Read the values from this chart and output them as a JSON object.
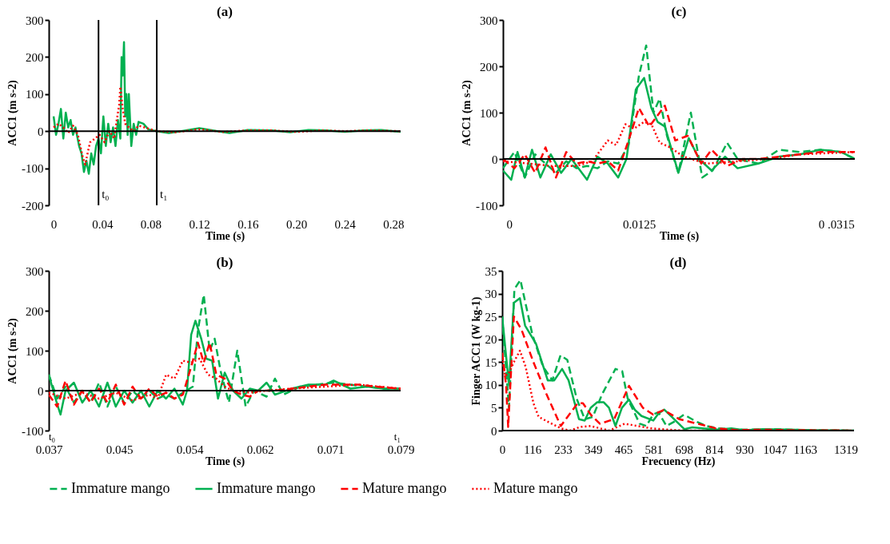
{
  "chart_data": [
    {
      "type": "line",
      "title": "(a)",
      "xlabel": "Time (s)",
      "ylabel": "ACC1 (m s-2)",
      "xlim": [
        -0.004,
        0.286
      ],
      "xticks": [
        0,
        0.04,
        0.08,
        0.12,
        0.16,
        {
          "value": 0.2,
          "label": "0.20"
        },
        0.24,
        0.28
      ],
      "ylim": [
        -200,
        300
      ],
      "yticks": [
        -200,
        -100,
        0,
        100,
        200,
        300
      ],
      "ref_lines": [
        {
          "axis": "x",
          "value": 0.037,
          "label": "t₀",
          "color": "#000000"
        },
        {
          "axis": "x",
          "value": 0.085,
          "label": "t₁",
          "color": "#000000"
        }
      ],
      "series": [
        {
          "color": "#00b050",
          "line_style": "solid",
          "x": [
            0,
            0.002,
            0.004,
            0.006,
            0.008,
            0.01,
            0.012,
            0.014,
            0.016,
            0.018,
            0.021,
            0.023,
            0.025,
            0.027,
            0.029,
            0.031,
            0.033,
            0.035,
            0.037,
            0.039,
            0.041,
            0.043,
            0.045,
            0.047,
            0.049,
            0.051,
            0.053,
            0.055,
            0.056,
            0.057,
            0.058,
            0.059,
            0.06,
            0.061,
            0.062,
            0.064,
            0.066,
            0.068,
            0.07,
            0.074,
            0.078,
            0.085,
            0.095,
            0.105,
            0.12,
            0.135,
            0.145,
            0.16,
            0.18,
            0.195,
            0.21,
            0.225,
            0.24,
            0.255,
            0.27,
            0.286
          ],
          "values": [
            40,
            -10,
            20,
            60,
            -20,
            50,
            10,
            30,
            -10,
            10,
            -40,
            -60,
            -110,
            -80,
            -115,
            -60,
            -90,
            -40,
            -20,
            -60,
            40,
            -40,
            20,
            -30,
            10,
            -40,
            30,
            -20,
            200,
            150,
            240,
            40,
            100,
            -10,
            100,
            -40,
            20,
            -10,
            25,
            20,
            5,
            0,
            -5,
            0,
            8,
            0,
            -5,
            3,
            2,
            -3,
            3,
            2,
            -2,
            2,
            3,
            -2
          ]
        },
        {
          "color": "#ff0000",
          "line_style": "dotted",
          "x": [
            0,
            0.004,
            0.008,
            0.012,
            0.016,
            0.02,
            0.022,
            0.024,
            0.026,
            0.028,
            0.03,
            0.034,
            0.038,
            0.042,
            0.046,
            0.05,
            0.052,
            0.054,
            0.055,
            0.057,
            0.059,
            0.062,
            0.066,
            0.07,
            0.075,
            0.085,
            0.1,
            0.12,
            0.14,
            0.16,
            0.18,
            0.2,
            0.22,
            0.24,
            0.26,
            0.286
          ],
          "values": [
            10,
            20,
            10,
            -5,
            15,
            -10,
            -40,
            -70,
            -90,
            -60,
            -30,
            -20,
            -10,
            -30,
            0,
            -20,
            30,
            70,
            120,
            60,
            20,
            10,
            0,
            15,
            10,
            0,
            -3,
            5,
            -2,
            2,
            2,
            -2,
            2,
            0,
            2,
            0
          ]
        }
      ]
    },
    {
      "type": "line",
      "title": "(c)",
      "xlabel": "Time (s)",
      "ylabel": "ACC1 (m s-2)",
      "xlim": [
        -0.0006,
        0.0333
      ],
      "xticks": [
        0,
        0.0125,
        {
          "value": 0.0315,
          "label": "0 .0315"
        }
      ],
      "ylim": [
        -100,
        300
      ],
      "yticks": [
        -100,
        0,
        100,
        200,
        300
      ],
      "series": [
        {
          "color": "#00b050",
          "line_style": "dashed",
          "x": [
            -0.0006,
            0.0005,
            0.0015,
            0.0025,
            0.0035,
            0.0045,
            0.0055,
            0.0065,
            0.0075,
            0.0085,
            0.0095,
            0.0105,
            0.0115,
            0.0125,
            0.0132,
            0.0139,
            0.0145,
            0.0152,
            0.0163,
            0.0175,
            0.0186,
            0.0196,
            0.021,
            0.022,
            0.024,
            0.026,
            0.028,
            0.03,
            0.032,
            0.0333
          ],
          "values": [
            -20,
            15,
            -40,
            10,
            -10,
            -30,
            -5,
            -20,
            -15,
            -20,
            -5,
            -10,
            30,
            180,
            245,
            100,
            130,
            50,
            -30,
            100,
            -40,
            -25,
            35,
            0,
            -10,
            20,
            15,
            20,
            15,
            0
          ]
        },
        {
          "color": "#00b050",
          "line_style": "solid",
          "x": [
            -0.0006,
            0.0002,
            0.0008,
            0.0015,
            0.0022,
            0.003,
            0.004,
            0.005,
            0.006,
            0.0075,
            0.0085,
            0.0095,
            0.0105,
            0.0113,
            0.0122,
            0.013,
            0.0137,
            0.0143,
            0.015,
            0.0163,
            0.0173,
            0.0183,
            0.0195,
            0.0208,
            0.022,
            0.024,
            0.026,
            0.028,
            0.03,
            0.032,
            0.0333
          ],
          "values": [
            -25,
            -45,
            15,
            -40,
            20,
            -40,
            10,
            -30,
            0,
            -45,
            5,
            -10,
            -40,
            0,
            150,
            175,
            110,
            80,
            70,
            -30,
            45,
            0,
            -25,
            5,
            -20,
            -10,
            5,
            10,
            20,
            15,
            0
          ]
        },
        {
          "color": "#ff0000",
          "line_style": "dashed",
          "x": [
            -0.0006,
            0.0005,
            0.0015,
            0.0025,
            0.0035,
            0.0045,
            0.0055,
            0.0065,
            0.0075,
            0.0085,
            0.0095,
            0.0105,
            0.0115,
            0.0125,
            0.0135,
            0.015,
            0.016,
            0.0172,
            0.0185,
            0.0195,
            0.021,
            0.0225,
            0.024,
            0.026,
            0.028,
            0.03,
            0.0333
          ],
          "values": [
            0,
            -20,
            10,
            -30,
            25,
            -40,
            15,
            -10,
            -5,
            -10,
            -5,
            -25,
            40,
            110,
            70,
            115,
            40,
            50,
            -10,
            20,
            -15,
            0,
            0,
            5,
            10,
            15,
            15
          ]
        },
        {
          "color": "#ff0000",
          "line_style": "dotted",
          "x": [
            -0.0006,
            0.002,
            0.004,
            0.0065,
            0.008,
            0.0095,
            0.0103,
            0.0112,
            0.012,
            0.013,
            0.0137,
            0.0145,
            0.0155,
            0.0168,
            0.019,
            0.022,
            0.025,
            0.028,
            0.0333
          ],
          "values": [
            -5,
            -10,
            -15,
            -15,
            -5,
            40,
            30,
            75,
            65,
            80,
            75,
            35,
            25,
            5,
            -10,
            -5,
            0,
            10,
            15
          ]
        }
      ]
    },
    {
      "type": "line",
      "title": "(b)",
      "xlabel": "Time (s)",
      "ylabel": "ACC1 (m s-2)",
      "xlim": [
        0.037,
        0.079
      ],
      "xticks": [
        0.037,
        {
          "value": 0.0454,
          "label": "0.045"
        },
        {
          "value": 0.0538,
          "label": "0.054"
        },
        {
          "value": 0.0622,
          "label": "0.062"
        },
        {
          "value": 0.0706,
          "label": "0.071"
        },
        0.079
      ],
      "ylim": [
        -100,
        300
      ],
      "yticks": [
        -100,
        0,
        100,
        200,
        300
      ],
      "annotations": [
        "t₀",
        "t₁"
      ],
      "series": [
        {
          "color": "#00b050",
          "line_style": "dashed",
          "x": [
            0.037,
            0.038,
            0.039,
            0.04,
            0.041,
            0.042,
            0.043,
            0.044,
            0.045,
            0.046,
            0.047,
            0.048,
            0.049,
            0.05,
            0.051,
            0.052,
            0.053,
            0.0542,
            0.0548,
            0.0555,
            0.0562,
            0.0568,
            0.0575,
            0.0585,
            0.0595,
            0.0605,
            0.0615,
            0.063,
            0.064,
            0.065,
            0.067,
            0.069,
            0.071,
            0.073,
            0.075,
            0.077,
            0.079
          ],
          "values": [
            40,
            -20,
            10,
            -30,
            0,
            -30,
            20,
            -40,
            10,
            -30,
            0,
            -20,
            0,
            -20,
            -10,
            -20,
            -5,
            10,
            150,
            240,
            100,
            130,
            50,
            -30,
            100,
            -40,
            0,
            -15,
            30,
            -10,
            10,
            15,
            20,
            15,
            10,
            5,
            5
          ]
        },
        {
          "color": "#00b050",
          "line_style": "solid",
          "x": [
            0.037,
            0.0378,
            0.0384,
            0.039,
            0.04,
            0.041,
            0.042,
            0.043,
            0.044,
            0.045,
            0.046,
            0.047,
            0.048,
            0.049,
            0.05,
            0.051,
            0.052,
            0.053,
            0.0535,
            0.054,
            0.0545,
            0.0552,
            0.0558,
            0.0565,
            0.0572,
            0.058,
            0.059,
            0.06,
            0.061,
            0.062,
            0.063,
            0.064,
            0.066,
            0.068,
            0.07,
            0.071,
            0.073,
            0.075,
            0.077,
            0.079
          ],
          "values": [
            40,
            -20,
            -60,
            0,
            20,
            -30,
            0,
            -40,
            20,
            -40,
            0,
            -30,
            0,
            -40,
            0,
            -20,
            5,
            -35,
            0,
            140,
            175,
            130,
            80,
            75,
            -20,
            45,
            0,
            -20,
            5,
            0,
            20,
            -10,
            5,
            15,
            15,
            25,
            5,
            10,
            5,
            5
          ]
        },
        {
          "color": "#ff0000",
          "line_style": "dashed",
          "x": [
            0.037,
            0.038,
            0.039,
            0.04,
            0.041,
            0.042,
            0.043,
            0.044,
            0.045,
            0.046,
            0.047,
            0.048,
            0.049,
            0.05,
            0.051,
            0.052,
            0.053,
            0.054,
            0.0548,
            0.0555,
            0.0562,
            0.057,
            0.058,
            0.059,
            0.06,
            0.061,
            0.062,
            0.064,
            0.066,
            0.068,
            0.07,
            0.072,
            0.074,
            0.076,
            0.079
          ],
          "values": [
            -10,
            -40,
            25,
            -35,
            0,
            -30,
            5,
            -30,
            15,
            -35,
            10,
            -20,
            5,
            -15,
            -5,
            -20,
            -10,
            60,
            120,
            70,
            120,
            40,
            30,
            0,
            -10,
            -15,
            0,
            0,
            5,
            10,
            15,
            15,
            15,
            10,
            5
          ]
        },
        {
          "color": "#ff0000",
          "line_style": "dotted",
          "x": [
            0.037,
            0.039,
            0.041,
            0.043,
            0.045,
            0.047,
            0.049,
            0.05,
            0.051,
            0.052,
            0.053,
            0.054,
            0.055,
            0.056,
            0.057,
            0.058,
            0.059,
            0.061,
            0.063,
            0.066,
            0.07,
            0.074,
            0.079
          ],
          "values": [
            -5,
            -20,
            -5,
            -20,
            -5,
            -25,
            -10,
            -20,
            40,
            30,
            75,
            70,
            80,
            40,
            30,
            10,
            0,
            -5,
            0,
            5,
            10,
            15,
            5
          ]
        }
      ]
    },
    {
      "type": "line",
      "title": "(d)",
      "xlabel": "Frecuency (Hz)",
      "ylabel": "Finger ACC1 (W kg-1)",
      "xlim": [
        0,
        1351
      ],
      "xticks": [
        0,
        116,
        233,
        349,
        465,
        581,
        698,
        814,
        930,
        1047,
        1163,
        1319
      ],
      "ylim": [
        0,
        35
      ],
      "yticks": [
        0,
        5,
        10,
        15,
        20,
        25,
        30,
        35
      ],
      "legend": "bottom",
      "series": [
        {
          "name": "Immature mango",
          "color": "#00b050",
          "line_style": "dashed",
          "x": [
            0,
            26,
            47,
            70,
            116,
            157,
            193,
            224,
            250,
            286,
            317,
            348,
            384,
            435,
            461,
            482,
            507,
            528,
            554,
            579,
            600,
            631,
            662,
            698,
            744,
            785,
            826,
            929,
            1047,
            1163,
            1351
          ],
          "values": [
            25,
            5,
            31,
            33,
            21,
            14,
            11,
            16.5,
            15.5,
            7,
            2.5,
            3,
            8,
            13.5,
            13,
            7,
            4,
            1.5,
            1,
            3.5,
            4,
            1,
            2,
            3.5,
            2,
            1,
            0.5,
            0.2,
            0.3,
            0.1,
            0
          ]
        },
        {
          "name": "Immature mango",
          "color": "#00b050",
          "line_style": "solid",
          "x": [
            0,
            26,
            45,
            68,
            88,
            130,
            175,
            200,
            230,
            255,
            295,
            317,
            340,
            365,
            390,
            410,
            435,
            460,
            487,
            510,
            535,
            580,
            600,
            622,
            660,
            700,
            730,
            770,
            830,
            880,
            930,
            1000,
            1100,
            1200,
            1351
          ],
          "values": [
            25,
            10,
            28,
            29,
            23,
            19,
            11,
            11,
            13.5,
            11,
            2.5,
            2.2,
            5,
            6.2,
            6.2,
            5,
            1,
            5,
            6.8,
            4.5,
            3.2,
            2.2,
            3.7,
            4.6,
            2.5,
            0.3,
            0.7,
            0.5,
            0.2,
            0.5,
            0.1,
            0.3,
            0.2,
            0.1,
            0
          ]
        },
        {
          "name": "Mature mango",
          "color": "#ff0000",
          "line_style": "dashed",
          "x": [
            0,
            15,
            23,
            45,
            75,
            120,
            170,
            225,
            290,
            310,
            340,
            375,
            430,
            487,
            540,
            580,
            620,
            680,
            750,
            820,
            900,
            1000,
            1100,
            1351
          ],
          "values": [
            17,
            10,
            0.8,
            25,
            22,
            15,
            8,
            1,
            6,
            6,
            3.5,
            1.5,
            2.5,
            9.8,
            5,
            3.5,
            4.5,
            2.5,
            1.5,
            0.5,
            0.1,
            0.2,
            0.1,
            0
          ]
        },
        {
          "name": "Mature mango",
          "color": "#ff0000",
          "line_style": "dotted",
          "x": [
            0,
            10,
            25,
            45,
            68,
            90,
            120,
            140,
            190,
            225,
            260,
            300,
            340,
            375,
            410,
            470,
            520,
            570,
            640,
            700,
            1351
          ],
          "values": [
            17,
            12,
            12.5,
            15,
            17.5,
            14,
            6,
            3,
            1.5,
            0.5,
            0,
            0.8,
            1,
            0.5,
            0,
            1.5,
            1,
            0.5,
            0.2,
            0,
            0
          ]
        }
      ]
    }
  ]
}
